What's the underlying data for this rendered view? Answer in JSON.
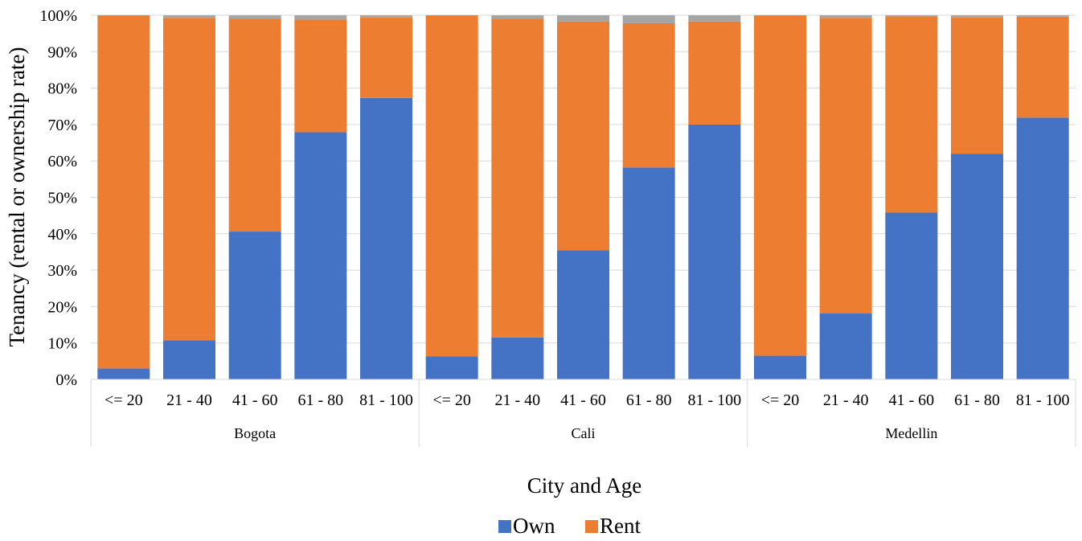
{
  "chart_data": {
    "type": "bar",
    "stacked": true,
    "percent_stacked": true,
    "xlabel": "City and Age",
    "ylabel": "Tenancy (rental or ownership rate)",
    "ylim": [
      0,
      100
    ],
    "yticks": [
      "0%",
      "10%",
      "20%",
      "30%",
      "40%",
      "50%",
      "60%",
      "70%",
      "80%",
      "90%",
      "100%"
    ],
    "grid": true,
    "legend_position": "bottom",
    "groups": [
      "Bogota",
      "Cali",
      "Medellin"
    ],
    "categories": [
      "<= 20",
      "21 - 40",
      "41 - 60",
      "61 - 80",
      "81 - 100",
      "<= 20",
      "21 - 40",
      "41 - 60",
      "61 - 80",
      "81 - 100",
      "<= 20",
      "21 - 40",
      "41 - 60",
      "61 - 80",
      "81 - 100"
    ],
    "category_group": [
      0,
      0,
      0,
      0,
      0,
      1,
      1,
      1,
      1,
      1,
      2,
      2,
      2,
      2,
      2
    ],
    "series": [
      {
        "name": "Own",
        "color": "#4472C4",
        "values": [
          3,
          10.7,
          40.6,
          67.9,
          77.3,
          6.3,
          11.5,
          35.5,
          58.2,
          70,
          6.5,
          18.1,
          45.8,
          62,
          71.9
        ]
      },
      {
        "name": "Rent",
        "color": "#ED7D31",
        "values": [
          97,
          88.6,
          58.4,
          30.9,
          22.1,
          93.7,
          87.5,
          62.8,
          39.6,
          28.3,
          93.5,
          81.2,
          53.9,
          37.4,
          27.7
        ]
      },
      {
        "color": "#A5A5A5",
        "values": [
          0,
          0.7,
          1,
          1.2,
          0.6,
          0,
          1,
          1.7,
          2.2,
          1.7,
          0,
          0.7,
          0.3,
          0.6,
          0.4
        ]
      }
    ],
    "legend": [
      "Own",
      "Rent"
    ]
  }
}
